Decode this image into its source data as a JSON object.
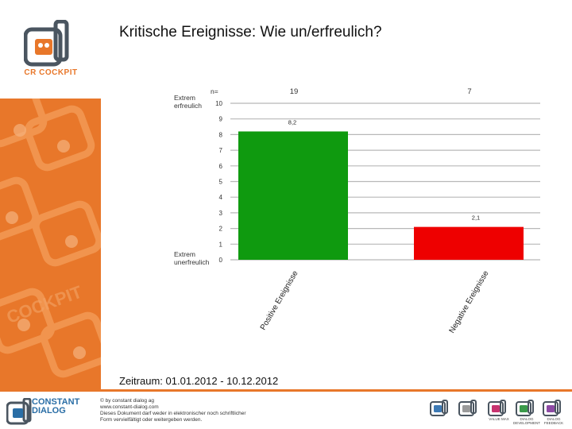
{
  "title": "Kritische Ereignisse: Wie un/erfreulich?",
  "logo": {
    "text": "CR COCKPIT"
  },
  "period": "Zeitraum: 01.01.2012 - 10.12.2012",
  "footer": {
    "brand": [
      "CONSTANT",
      "DIALOG"
    ],
    "info": [
      "© by constant dialog ag",
      "www.constant-dialog.com",
      "Dieses Dokument darf weder in elektronischer noch schriftlicher",
      "Form vervielfältigt oder weitergeben werden."
    ],
    "products": [
      {
        "label": "",
        "color": "#3d7ab5"
      },
      {
        "label": "",
        "color": "#9a9a9a"
      },
      {
        "label": "VALUE MAX",
        "color": "#c8336f"
      },
      {
        "label": "DIALOG DEVELOPMENT",
        "color": "#3a9a4a"
      },
      {
        "label": "DIALOG FEEDBACK",
        "color": "#8d4aa5"
      }
    ]
  },
  "chart_data": {
    "type": "bar",
    "categories": [
      "Positive Ereignisse",
      "Negative Ereignisse"
    ],
    "values": [
      8.2,
      2.1
    ],
    "value_labels": [
      "8,2",
      "2,1"
    ],
    "n_label": "n=",
    "n_values": [
      "19",
      "7"
    ],
    "colors": [
      "#0f9a0f",
      "#ee0000"
    ],
    "ylim": [
      0,
      10
    ],
    "yticks": [
      "0",
      "1",
      "2",
      "3",
      "4",
      "5",
      "6",
      "7",
      "8",
      "9",
      "10"
    ],
    "top_anchor": [
      "Extrem",
      "erfreulich"
    ],
    "bottom_anchor": [
      "Extrem",
      "unerfreulich"
    ],
    "grid": true,
    "title": "",
    "xlabel": "",
    "ylabel": ""
  }
}
